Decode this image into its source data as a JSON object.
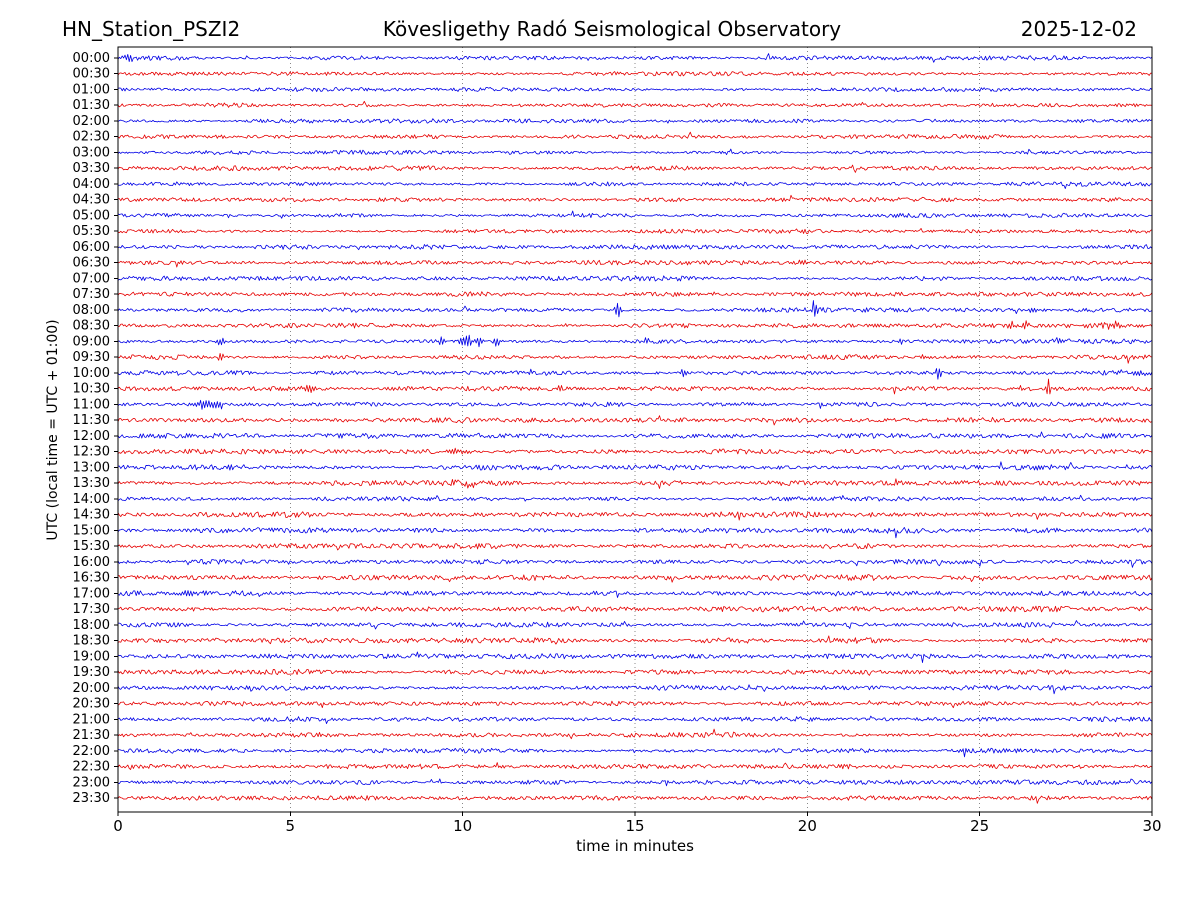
{
  "header": {
    "station": "HN_Station_PSZI2",
    "observatory": "Kövesligethy Radó Seismological Observatory",
    "date": "2025-12-02"
  },
  "chart_data": {
    "type": "line",
    "variant": "helicorder-day-plot",
    "station": "HN_Station_PSZI2",
    "title": "Kövesligethy Radó Seismological Observatory",
    "date": "2025-12-02",
    "xlabel": "time in minutes",
    "ylabel": "UTC (local time = UTC + 01:00)",
    "xlim": [
      0,
      30
    ],
    "x_ticks": [
      0,
      5,
      10,
      15,
      20,
      25,
      30
    ],
    "grid": true,
    "grid_minutes": [
      5,
      10,
      15,
      20,
      25
    ],
    "legend": "none",
    "minutes_per_line": 30,
    "colors": {
      "even_rows": "#0000e6",
      "odd_rows": "#e60000",
      "grid": "#888888",
      "frame": "#000000"
    },
    "rows": [
      {
        "label": "00:00",
        "amp": 1.6,
        "events": [
          {
            "m": 0.25,
            "a": 3.5,
            "w": 0.2
          }
        ]
      },
      {
        "label": "00:30",
        "amp": 1.6,
        "events": []
      },
      {
        "label": "01:00",
        "amp": 1.6,
        "events": []
      },
      {
        "label": "01:30",
        "amp": 1.7,
        "events": []
      },
      {
        "label": "02:00",
        "amp": 1.6,
        "events": []
      },
      {
        "label": "02:30",
        "amp": 1.6,
        "events": []
      },
      {
        "label": "03:00",
        "amp": 1.6,
        "events": []
      },
      {
        "label": "03:30",
        "amp": 1.7,
        "events": []
      },
      {
        "label": "04:00",
        "amp": 1.7,
        "events": []
      },
      {
        "label": "04:30",
        "amp": 1.7,
        "events": []
      },
      {
        "label": "05:00",
        "amp": 1.7,
        "events": []
      },
      {
        "label": "05:30",
        "amp": 1.7,
        "events": []
      },
      {
        "label": "06:00",
        "amp": 1.8,
        "events": []
      },
      {
        "label": "06:30",
        "amp": 1.8,
        "events": [
          {
            "m": 19.9,
            "a": 2.5,
            "w": 0.25
          }
        ]
      },
      {
        "label": "07:00",
        "amp": 1.8,
        "events": []
      },
      {
        "label": "07:30",
        "amp": 1.8,
        "events": []
      },
      {
        "label": "08:00",
        "amp": 1.7,
        "events": [
          {
            "m": 14.5,
            "a": 9,
            "w": 0.08
          },
          {
            "m": 20.2,
            "a": 11,
            "w": 0.08
          },
          {
            "m": 26.5,
            "a": 4,
            "w": 0.1
          }
        ]
      },
      {
        "label": "08:30",
        "amp": 1.8,
        "events": [
          {
            "m": 20.2,
            "a": 2.5,
            "w": 0.1
          },
          {
            "m": 25.9,
            "a": 4,
            "w": 0.1
          },
          {
            "m": 26.3,
            "a": 5,
            "w": 0.1
          },
          {
            "m": 28.9,
            "a": 3,
            "w": 0.35
          }
        ]
      },
      {
        "label": "09:00",
        "amp": 1.7,
        "events": [
          {
            "m": 3.0,
            "a": 5,
            "w": 0.1
          },
          {
            "m": 9.4,
            "a": 4,
            "w": 0.12
          },
          {
            "m": 10.1,
            "a": 7,
            "w": 0.18
          },
          {
            "m": 10.5,
            "a": 5,
            "w": 0.12
          },
          {
            "m": 11.0,
            "a": 5,
            "w": 0.1
          },
          {
            "m": 15.3,
            "a": 4,
            "w": 0.08
          },
          {
            "m": 22.7,
            "a": 2.5,
            "w": 0.1
          },
          {
            "m": 27.3,
            "a": 5,
            "w": 0.1
          }
        ]
      },
      {
        "label": "09:30",
        "amp": 1.8,
        "events": [
          {
            "m": 3.0,
            "a": 6,
            "w": 0.08
          },
          {
            "m": 23.4,
            "a": 3,
            "w": 0.12
          }
        ]
      },
      {
        "label": "10:00",
        "amp": 1.7,
        "events": [
          {
            "m": 16.4,
            "a": 5,
            "w": 0.08
          },
          {
            "m": 18.0,
            "a": 3,
            "w": 0.08
          },
          {
            "m": 23.8,
            "a": 8,
            "w": 0.08
          },
          {
            "m": 29.4,
            "a": 2.5,
            "w": 0.7
          }
        ]
      },
      {
        "label": "10:30",
        "amp": 1.8,
        "events": [
          {
            "m": 5.6,
            "a": 4,
            "w": 0.25
          },
          {
            "m": 12.8,
            "a": 4,
            "w": 0.1
          },
          {
            "m": 26.2,
            "a": 3,
            "w": 0.18
          },
          {
            "m": 27.0,
            "a": 8,
            "w": 0.1
          }
        ]
      },
      {
        "label": "11:00",
        "amp": 1.7,
        "events": [
          {
            "m": 2.7,
            "a": 5,
            "w": 0.5
          }
        ]
      },
      {
        "label": "11:30",
        "amp": 1.9,
        "events": []
      },
      {
        "label": "12:00",
        "amp": 2.0,
        "events": []
      },
      {
        "label": "12:30",
        "amp": 2.0,
        "events": [
          {
            "m": 9.8,
            "a": 2.2,
            "w": 0.5
          }
        ]
      },
      {
        "label": "13:00",
        "amp": 2.0,
        "events": []
      },
      {
        "label": "13:30",
        "amp": 2.1,
        "events": [
          {
            "m": 10.2,
            "a": 2.4,
            "w": 0.7
          }
        ]
      },
      {
        "label": "14:00",
        "amp": 2.0,
        "events": []
      },
      {
        "label": "14:30",
        "amp": 2.1,
        "events": []
      },
      {
        "label": "15:00",
        "amp": 2.0,
        "events": []
      },
      {
        "label": "15:30",
        "amp": 2.0,
        "events": []
      },
      {
        "label": "16:00",
        "amp": 2.0,
        "events": []
      },
      {
        "label": "16:30",
        "amp": 2.1,
        "events": []
      },
      {
        "label": "17:00",
        "amp": 2.0,
        "events": []
      },
      {
        "label": "17:30",
        "amp": 2.0,
        "events": []
      },
      {
        "label": "18:00",
        "amp": 2.0,
        "events": []
      },
      {
        "label": "18:30",
        "amp": 2.0,
        "events": []
      },
      {
        "label": "19:00",
        "amp": 1.9,
        "events": []
      },
      {
        "label": "19:30",
        "amp": 1.9,
        "events": []
      },
      {
        "label": "20:00",
        "amp": 1.8,
        "events": []
      },
      {
        "label": "20:30",
        "amp": 1.8,
        "events": []
      },
      {
        "label": "21:00",
        "amp": 1.8,
        "events": []
      },
      {
        "label": "21:30",
        "amp": 1.8,
        "events": []
      },
      {
        "label": "22:00",
        "amp": 1.8,
        "events": []
      },
      {
        "label": "22:30",
        "amp": 1.8,
        "events": []
      },
      {
        "label": "23:00",
        "amp": 1.7,
        "events": []
      },
      {
        "label": "23:30",
        "amp": 1.7,
        "events": []
      }
    ]
  }
}
